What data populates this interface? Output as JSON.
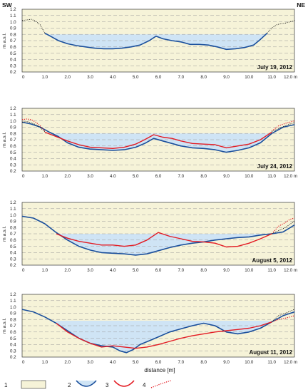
{
  "figure": {
    "corner_left": "SW",
    "corner_right": "NE",
    "xlabel": "distance  [m]",
    "legend": [
      {
        "number": "1",
        "symbol": "ground-fill"
      },
      {
        "number": "2",
        "symbol": "water-fill-blue-line"
      },
      {
        "number": "3",
        "symbol": "red-line"
      },
      {
        "number": "4",
        "symbol": "red-dotted-line"
      }
    ],
    "colors": {
      "ground": "#f6f3d8",
      "water": "#cfe4f5",
      "profile_current": "#1a4f9c",
      "profile_reference": "#e31b23",
      "profile_dotted": "#111111",
      "grid": "#9a9a9a"
    }
  },
  "chart_data": [
    {
      "type": "line",
      "date_label": "July 19, 2012",
      "ylabel": "m a.s.l.",
      "xlim": [
        0,
        12
      ],
      "ylim": [
        0.2,
        1.2
      ],
      "x_ticks": [
        "0",
        "1.0",
        "2.0",
        "3.0",
        "4.0",
        "5.0",
        "6.0",
        "7.0",
        "8.0",
        "9.0",
        "10.0",
        "11.0",
        "12.0 m"
      ],
      "y_ticks": [
        "0.2",
        "0.3",
        "0.4",
        "0.5",
        "0.6",
        "0.7",
        "0.8",
        "0.9",
        "1.0",
        "1.1",
        "1.2"
      ],
      "water_level": 0.8,
      "series": [
        {
          "style": "blue-solid",
          "x": [
            1.0,
            1.3,
            1.6,
            2.0,
            2.4,
            2.8,
            3.2,
            3.6,
            4.0,
            4.4,
            4.8,
            5.2,
            5.6,
            5.9,
            6.2,
            6.6,
            7.0,
            7.4,
            7.8,
            8.2,
            8.6,
            9.0,
            9.4,
            9.8,
            10.2,
            10.5,
            10.8
          ],
          "y": [
            0.82,
            0.76,
            0.7,
            0.65,
            0.62,
            0.6,
            0.58,
            0.57,
            0.57,
            0.58,
            0.6,
            0.63,
            0.7,
            0.77,
            0.73,
            0.7,
            0.68,
            0.64,
            0.64,
            0.63,
            0.6,
            0.56,
            0.57,
            0.59,
            0.63,
            0.72,
            0.82
          ]
        },
        {
          "style": "black-dotted",
          "x": [
            0,
            0.2,
            0.4,
            0.6,
            0.8,
            1.0,
            10.8,
            11.0,
            11.2,
            11.4,
            11.6,
            11.8,
            12.0
          ],
          "y": [
            1.02,
            1.03,
            1.04,
            1.01,
            0.95,
            0.82,
            0.82,
            0.9,
            0.95,
            0.97,
            0.98,
            1.0,
            1.02
          ]
        }
      ]
    },
    {
      "type": "line",
      "date_label": "July 24, 2012",
      "ylabel": "m a.s.l.",
      "xlim": [
        0,
        12
      ],
      "ylim": [
        0.2,
        1.2
      ],
      "x_ticks": [
        "0",
        "1.0",
        "2.0",
        "3.0",
        "4.0",
        "5.0",
        "6.0",
        "7.0",
        "8.0",
        "9.0",
        "10.0",
        "11.0",
        "12.0 m"
      ],
      "y_ticks": [
        "0.2",
        "0.3",
        "0.4",
        "0.5",
        "0.6",
        "0.7",
        "0.8",
        "0.9",
        "1.0",
        "1.1",
        "1.2"
      ],
      "water_level": 0.8,
      "series": [
        {
          "style": "blue-solid",
          "x": [
            0,
            0.4,
            0.8,
            1.2,
            1.6,
            2.0,
            2.5,
            3.0,
            3.5,
            4.0,
            4.5,
            5.0,
            5.4,
            5.8,
            6.2,
            6.6,
            7.0,
            7.5,
            8.0,
            8.5,
            9.0,
            9.5,
            10.0,
            10.5,
            11.0,
            11.5,
            12.0
          ],
          "y": [
            0.98,
            0.95,
            0.9,
            0.82,
            0.75,
            0.65,
            0.58,
            0.55,
            0.54,
            0.53,
            0.54,
            0.58,
            0.64,
            0.72,
            0.68,
            0.64,
            0.6,
            0.57,
            0.56,
            0.54,
            0.5,
            0.53,
            0.57,
            0.65,
            0.8,
            0.9,
            0.94
          ]
        },
        {
          "style": "red-solid",
          "x": [
            1.0,
            1.5,
            2.0,
            2.5,
            3.0,
            3.5,
            4.0,
            4.5,
            5.0,
            5.4,
            5.8,
            6.2,
            6.6,
            7.0,
            7.5,
            8.0,
            8.5,
            9.0,
            9.5,
            10.0,
            10.5,
            11.0
          ],
          "y": [
            0.82,
            0.75,
            0.68,
            0.62,
            0.58,
            0.57,
            0.56,
            0.58,
            0.63,
            0.7,
            0.78,
            0.74,
            0.72,
            0.68,
            0.64,
            0.63,
            0.62,
            0.57,
            0.6,
            0.63,
            0.7,
            0.82
          ]
        },
        {
          "style": "red-dotted",
          "x": [
            0,
            0.2,
            0.4,
            0.6,
            0.8,
            1.0,
            11.0,
            11.3,
            11.6,
            11.8,
            12.0
          ],
          "y": [
            1.02,
            1.03,
            1.02,
            0.98,
            0.92,
            0.84,
            0.84,
            0.92,
            0.96,
            0.98,
            1.0
          ]
        },
        {
          "style": "black-dotted",
          "x": [
            0,
            0.2,
            0.4,
            0.6,
            0.8,
            1.0,
            11.0,
            11.3,
            11.6,
            11.8,
            12.0
          ],
          "y": [
            0.98,
            0.99,
            0.97,
            0.94,
            0.89,
            0.83,
            0.83,
            0.88,
            0.92,
            0.95,
            0.97
          ]
        }
      ]
    },
    {
      "type": "line",
      "date_label": "August 5, 2012",
      "ylabel": "m a.s.l.",
      "xlim": [
        0,
        12
      ],
      "ylim": [
        0.2,
        1.2
      ],
      "x_ticks": [
        "0",
        "1.0",
        "2.0",
        "3.0",
        "4.0",
        "5.0",
        "6.0",
        "7.0",
        "8.0",
        "9.0",
        "10.0",
        "11.0",
        "12.0 m"
      ],
      "y_ticks": [
        "0.2",
        "0.3",
        "0.4",
        "0.5",
        "0.6",
        "0.7",
        "0.8",
        "0.9",
        "1.0",
        "1.1",
        "1.2"
      ],
      "water_level": 0.7,
      "series": [
        {
          "style": "blue-solid",
          "x": [
            0,
            0.5,
            1.0,
            1.5,
            2.0,
            2.5,
            3.0,
            3.5,
            4.0,
            4.5,
            5.0,
            5.5,
            6.0,
            6.5,
            7.0,
            7.5,
            8.0,
            8.5,
            9.0,
            9.5,
            10.0,
            10.5,
            11.0,
            11.5,
            12.0
          ],
          "y": [
            0.98,
            0.95,
            0.86,
            0.72,
            0.6,
            0.5,
            0.44,
            0.4,
            0.39,
            0.38,
            0.36,
            0.38,
            0.43,
            0.48,
            0.52,
            0.55,
            0.57,
            0.6,
            0.62,
            0.64,
            0.65,
            0.68,
            0.7,
            0.73,
            0.84
          ]
        },
        {
          "style": "red-solid",
          "x": [
            1.5,
            2.0,
            2.5,
            3.0,
            3.5,
            4.0,
            4.5,
            5.0,
            5.5,
            6.0,
            6.5,
            7.0,
            7.5,
            8.0,
            8.5,
            9.0,
            9.5,
            10.0,
            10.5,
            11.0
          ],
          "y": [
            0.7,
            0.63,
            0.58,
            0.55,
            0.52,
            0.52,
            0.5,
            0.52,
            0.6,
            0.72,
            0.66,
            0.62,
            0.58,
            0.57,
            0.55,
            0.49,
            0.5,
            0.55,
            0.62,
            0.7
          ]
        },
        {
          "style": "red-dotted",
          "x": [
            11.0,
            11.3,
            11.6,
            11.8,
            12.0
          ],
          "y": [
            0.7,
            0.82,
            0.88,
            0.93,
            0.95
          ]
        },
        {
          "style": "black-dotted",
          "x": [
            11.0,
            11.3,
            11.6,
            11.8,
            12.0
          ],
          "y": [
            0.7,
            0.75,
            0.8,
            0.85,
            0.9
          ]
        }
      ]
    },
    {
      "type": "line",
      "date_label": "August 11, 2012",
      "ylabel": "m a.s.l.",
      "xlim": [
        0,
        12
      ],
      "ylim": [
        0.2,
        1.2
      ],
      "x_ticks": [
        "0",
        "1.0",
        "2.0",
        "3.0",
        "4.0",
        "5.0",
        "6.0",
        "7.0",
        "8.0",
        "9.0",
        "10.0",
        "11.0",
        "12.0 m"
      ],
      "y_ticks": [
        "0.2",
        "0.3",
        "0.4",
        "0.5",
        "0.6",
        "0.7",
        "0.8",
        "0.9",
        "1.0",
        "1.1",
        "1.2"
      ],
      "water_level": 0.78,
      "series": [
        {
          "style": "blue-solid",
          "x": [
            0,
            0.5,
            1.0,
            1.5,
            2.0,
            2.5,
            3.0,
            3.5,
            4.0,
            4.3,
            4.6,
            4.9,
            5.2,
            5.6,
            6.0,
            6.5,
            7.0,
            7.5,
            8.0,
            8.5,
            9.0,
            9.5,
            10.0,
            10.5,
            11.0,
            11.5,
            12.0
          ],
          "y": [
            0.96,
            0.92,
            0.84,
            0.74,
            0.62,
            0.5,
            0.42,
            0.38,
            0.36,
            0.3,
            0.27,
            0.32,
            0.4,
            0.46,
            0.52,
            0.6,
            0.65,
            0.7,
            0.74,
            0.7,
            0.6,
            0.57,
            0.6,
            0.66,
            0.76,
            0.86,
            0.92
          ]
        },
        {
          "style": "red-solid",
          "x": [
            1.5,
            2.0,
            2.5,
            3.0,
            3.5,
            4.0,
            4.5,
            5.0,
            5.5,
            6.0,
            6.5,
            7.0,
            7.5,
            8.0,
            8.5,
            9.0,
            9.5,
            10.0,
            10.5,
            11.0
          ],
          "y": [
            0.74,
            0.6,
            0.5,
            0.42,
            0.36,
            0.38,
            0.36,
            0.34,
            0.36,
            0.4,
            0.45,
            0.5,
            0.54,
            0.57,
            0.6,
            0.62,
            0.64,
            0.66,
            0.7,
            0.76
          ]
        },
        {
          "style": "red-dotted",
          "x": [
            11.0,
            11.3,
            11.6,
            11.8,
            12.0
          ],
          "y": [
            0.76,
            0.8,
            0.82,
            0.84,
            0.86
          ]
        },
        {
          "style": "black-dotted",
          "x": [
            11.0,
            11.3,
            11.6,
            11.8,
            12.0
          ],
          "y": [
            0.76,
            0.86,
            0.9,
            0.93,
            0.96
          ]
        }
      ]
    }
  ]
}
